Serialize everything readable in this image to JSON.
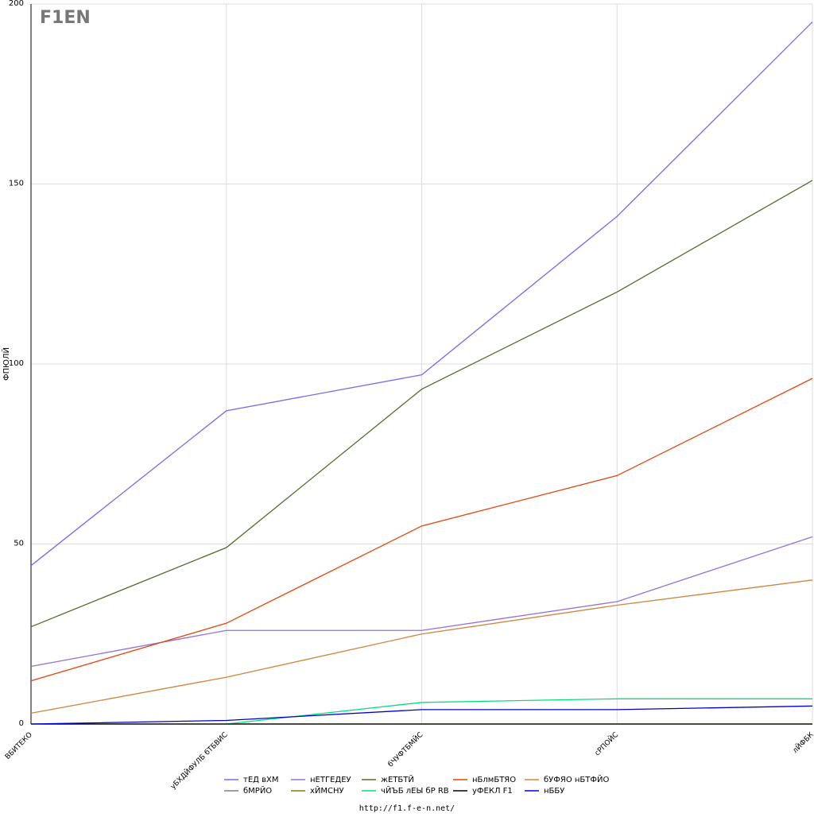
{
  "logo": "F1EN",
  "footer": "http://f1.f-e-n.net/",
  "chart_data": {
    "type": "line",
    "y_label": "ФПЮЛЙ",
    "categories": [
      "ВБИТЕКО",
      "уБХДЙФУЛБ бТБВИС",
      "бЧУФТБМЙС",
      "сРПОЙС",
      "лЙФБК"
    ],
    "ylim": [
      0,
      200
    ],
    "yticks": [
      0,
      50,
      100,
      150,
      200
    ],
    "grid": true,
    "series": [
      {
        "name": "тЕД вХМ",
        "color": "#7b68ee",
        "values": [
          44,
          87,
          97,
          141,
          195
        ]
      },
      {
        "name": "нЕТГЕДЕУ",
        "color": "#9370db",
        "values": [
          16,
          26,
          26,
          34,
          52
        ]
      },
      {
        "name": "жЕТБТЙ",
        "color": "#556b2f",
        "values": [
          27,
          49,
          93,
          120,
          151
        ]
      },
      {
        "name": "нБлмБТЯО",
        "color": "#e3440e",
        "values": [
          12,
          28,
          55,
          69,
          96
        ]
      },
      {
        "name": "бУФЯО нБТФЙО",
        "color": "#cd853f",
        "values": [
          3,
          13,
          25,
          33,
          40
        ]
      },
      {
        "name": "бМРЙО",
        "color": "#708090",
        "values": [
          0,
          0,
          0,
          0,
          0
        ]
      },
      {
        "name": "хЙМСНУ",
        "color": "#808000",
        "values": [
          0,
          0,
          0,
          0,
          0
        ]
      },
      {
        "name": "чЙЪБ лЕЫ бР RB",
        "color": "#00e07f",
        "values": [
          null,
          0,
          6,
          7,
          7
        ]
      },
      {
        "name": "уФЕКЛ F1",
        "color": "#000000",
        "values": [
          0,
          0,
          0,
          0,
          0
        ]
      },
      {
        "name": "нББУ",
        "color": "#0000cd",
        "values": [
          0,
          1,
          4,
          4,
          5
        ]
      }
    ]
  }
}
